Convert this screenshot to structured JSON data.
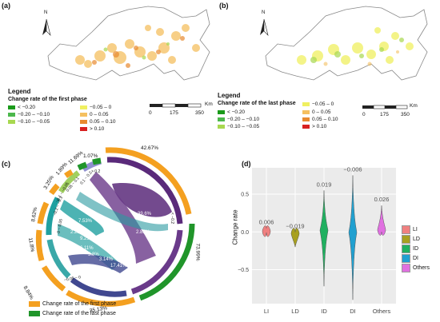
{
  "panel_a": {
    "label": "(a)",
    "north": "N",
    "legend_title": "Legend",
    "legend_subtitle": "Change rate of the first phase",
    "legend_items": [
      {
        "label": "< −0.20",
        "color": "#1a9a1a"
      },
      {
        "label": "−0.20 – −0.10",
        "color": "#4cb84c"
      },
      {
        "label": "−0.10 – −0.05",
        "color": "#a8d850"
      },
      {
        "label": "−0.05 – 0",
        "color": "#f0f060"
      },
      {
        "label": "0 – 0.05",
        "color": "#f5c060"
      },
      {
        "label": "0.05 – 0.10",
        "color": "#e88a30"
      },
      {
        "label": "> 0.10",
        "color": "#d82020"
      }
    ],
    "scale": {
      "unit": "Km",
      "ticks": [
        "0",
        "175",
        "350"
      ]
    }
  },
  "panel_b": {
    "label": "(b)",
    "north": "N",
    "legend_title": "Legend",
    "legend_subtitle": "Change rate of the last phase",
    "legend_items": [
      {
        "label": "< −0.20",
        "color": "#1a9a1a"
      },
      {
        "label": "−0.20 – −0.10",
        "color": "#4cb84c"
      },
      {
        "label": "−0.10 – −0.05",
        "color": "#a8d850"
      },
      {
        "label": "−0.05 – 0",
        "color": "#f0f060"
      },
      {
        "label": "0 – 0.05",
        "color": "#f5c060"
      },
      {
        "label": "0.05 – 0.10",
        "color": "#e88a30"
      },
      {
        "label": "> 0.10",
        "color": "#d82020"
      }
    ],
    "scale": {
      "unit": "Km",
      "ticks": [
        "0",
        "175",
        "350"
      ]
    }
  },
  "panel_c": {
    "label": "(c)",
    "outer_percents": [
      "42.67%",
      "73.99%",
      "35.13%",
      "8.84%",
      "11.8%",
      "8.62%",
      "3.25%",
      "1.89%",
      "11.69%",
      "1.07%"
    ],
    "inner_labels": [
      "39.6%",
      "2.85%",
      "7.53%",
      "2.25%",
      "9.29%",
      "6.11%",
      "5.8%",
      "3.14%",
      "17.41%"
    ],
    "chord_labels": [
      "> 0.2",
      "0.1 ~ 0.2",
      "0.05 ~ 0.1",
      "0 ~ 0.05",
      "−0.05 ~ 0",
      "−0.1 ~ −0.05",
      "−0.2 ~ −0.1",
      "< −0.2"
    ],
    "legend": [
      {
        "label": "Change rate of the first phase",
        "color": "#f4a020"
      },
      {
        "label": "Change rate of the last phase",
        "color": "#20952a"
      }
    ]
  },
  "panel_d": {
    "label": "(d)",
    "legend_items": [
      {
        "label": "LI",
        "color": "#f08080"
      },
      {
        "label": "LD",
        "color": "#a8a020"
      },
      {
        "label": "ID",
        "color": "#20b060"
      },
      {
        "label": "DI",
        "color": "#20a0d0"
      },
      {
        "label": "Others",
        "color": "#e070e0"
      }
    ]
  },
  "chart_data": {
    "type": "violin",
    "title": "",
    "xlabel": "",
    "ylabel": "Change rate",
    "categories": [
      "LI",
      "LD",
      "ID",
      "DI",
      "Others"
    ],
    "values": [
      0.006,
      -0.019,
      0.019,
      -0.006,
      0.026
    ],
    "value_labels": [
      "0.006",
      "−0.019",
      "0.019",
      "−0.006",
      "0.026"
    ],
    "ranges": [
      [
        -0.01,
        0.05
      ],
      [
        -0.2,
        0.0
      ],
      [
        -0.72,
        0.55
      ],
      [
        -0.9,
        0.75
      ],
      [
        0.0,
        0.35
      ]
    ],
    "ylim": [
      -0.95,
      0.85
    ],
    "yticks": [
      "0.5",
      "0.0",
      "−0.5"
    ],
    "grid": true,
    "legend_position": "right"
  }
}
